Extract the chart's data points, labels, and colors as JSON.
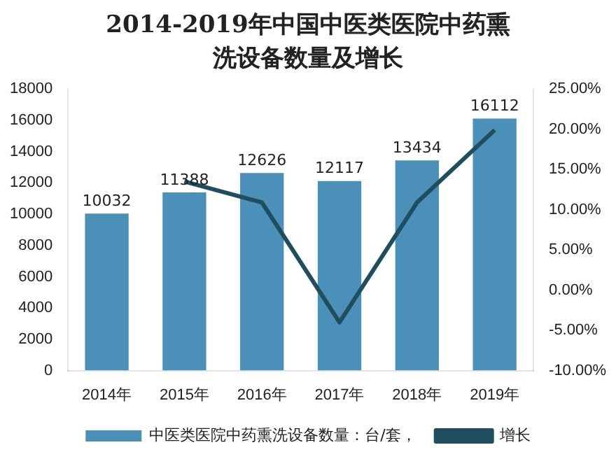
{
  "chart_data": {
    "type": "bar",
    "title": "2014-2019年中国中医类医院中药熏洗设备数量及增长",
    "categories": [
      "2014年",
      "2015年",
      "2016年",
      "2017年",
      "2018年",
      "2019年"
    ],
    "series": [
      {
        "name": "中医类医院中药熏洗设备数量：台/套，",
        "color": "#4a90b8",
        "values": [
          10032,
          11388,
          12626,
          12117,
          13434,
          16112
        ],
        "value_labels": [
          "10032",
          "11388",
          "12626",
          "12117",
          "13434",
          "16112"
        ]
      },
      {
        "name": "增长",
        "type": "line",
        "axis": "y2",
        "color": "#1f4e5f",
        "values": [
          null,
          13.5,
          10.9,
          -4.0,
          10.9,
          19.9
        ]
      }
    ],
    "ylim": [
      0,
      18000
    ],
    "yticks": [
      0,
      2000,
      4000,
      6000,
      8000,
      10000,
      12000,
      14000,
      16000,
      18000
    ],
    "y2lim": [
      -10,
      25
    ],
    "y2ticks": [
      {
        "value": -10,
        "label": "-10.00%"
      },
      {
        "value": -5,
        "label": "-5.00%"
      },
      {
        "value": 0,
        "label": "0.00%"
      },
      {
        "value": 5,
        "label": "5.00%"
      },
      {
        "value": 10,
        "label": "10.00%"
      },
      {
        "value": 15,
        "label": "15.00%"
      },
      {
        "value": 20,
        "label": "20.00%"
      },
      {
        "value": 25,
        "label": "25.00%"
      }
    ],
    "grid": false,
    "legend": "bottom",
    "marker": "none"
  }
}
